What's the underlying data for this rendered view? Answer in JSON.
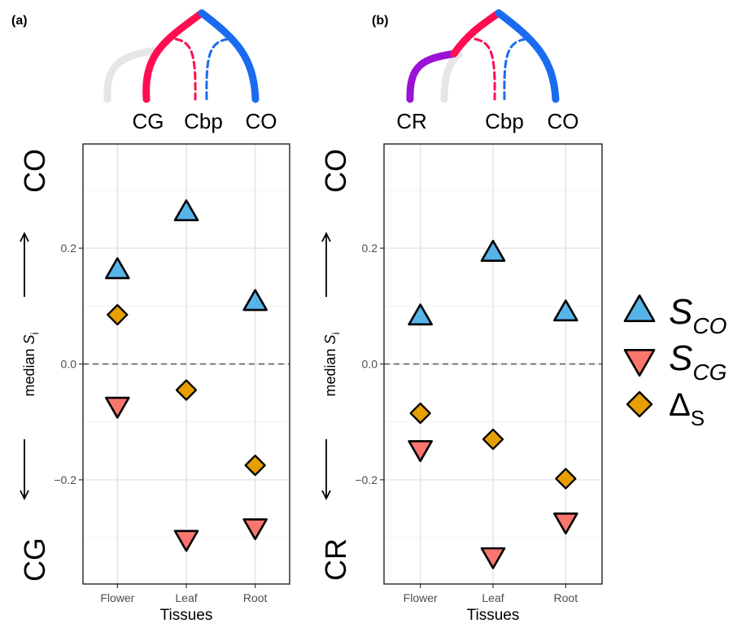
{
  "chart_data": [
    {
      "type": "scatter",
      "panel_label": "(a)",
      "tree_tips": [
        "CG",
        "Cbp",
        "CO"
      ],
      "top_label": "CO",
      "bottom_label": "CG",
      "ylabel_prefix": "median ",
      "ylabel_var": "S",
      "ylabel_sub": "i",
      "xlabel": "Tissues",
      "categories": [
        "Flower",
        "Leaf",
        "Root"
      ],
      "ylim": [
        -0.38,
        0.38
      ],
      "yticks": [
        -0.2,
        0.0,
        0.2
      ],
      "ytick_labels": [
        "−0.2",
        "0.0",
        "0.2"
      ],
      "reference_line": 0.0,
      "grid": true,
      "series": [
        {
          "name": "S_CO",
          "marker": "triangle-up",
          "color": "#56B4E9",
          "values": [
            0.16,
            0.26,
            0.105
          ]
        },
        {
          "name": "S_CG",
          "marker": "triangle-down",
          "color": "#F8766D",
          "values": [
            -0.07,
            -0.3,
            -0.28
          ]
        },
        {
          "name": "Delta_S",
          "marker": "diamond",
          "color": "#E69F00",
          "values": [
            0.085,
            -0.045,
            -0.175
          ]
        }
      ]
    },
    {
      "type": "scatter",
      "panel_label": "(b)",
      "tree_tips": [
        "CR",
        "Cbp",
        "CO"
      ],
      "top_label": "CO",
      "bottom_label": "CR",
      "ylabel_prefix": "median ",
      "ylabel_var": "S",
      "ylabel_sub": "i",
      "xlabel": "Tissues",
      "categories": [
        "Flower",
        "Leaf",
        "Root"
      ],
      "ylim": [
        -0.38,
        0.38
      ],
      "yticks": [
        -0.2,
        0.0,
        0.2
      ],
      "ytick_labels": [
        "−0.2",
        "0.0",
        "0.2"
      ],
      "reference_line": 0.0,
      "grid": true,
      "series": [
        {
          "name": "S_CO",
          "marker": "triangle-up",
          "color": "#56B4E9",
          "values": [
            0.08,
            0.19,
            0.087
          ]
        },
        {
          "name": "S_CG",
          "marker": "triangle-down",
          "color": "#F8766D",
          "values": [
            -0.145,
            -0.33,
            -0.27
          ]
        },
        {
          "name": "Delta_S",
          "marker": "diamond",
          "color": "#E69F00",
          "values": [
            -0.085,
            -0.13,
            -0.198
          ]
        }
      ]
    }
  ],
  "legend": [
    {
      "main": "S",
      "sub": "CO",
      "marker": "triangle-up",
      "color": "#56B4E9"
    },
    {
      "main": "S",
      "sub": "CG",
      "marker": "triangle-down",
      "color": "#F8766D"
    },
    {
      "main": "Δ",
      "sub": "S",
      "marker": "diamond",
      "color": "#E69F00"
    }
  ],
  "tree_colors": {
    "red": "#FF0D50",
    "blue": "#1A6BF0",
    "grey": "#E6E6E6",
    "purple": "#9A12D8"
  }
}
